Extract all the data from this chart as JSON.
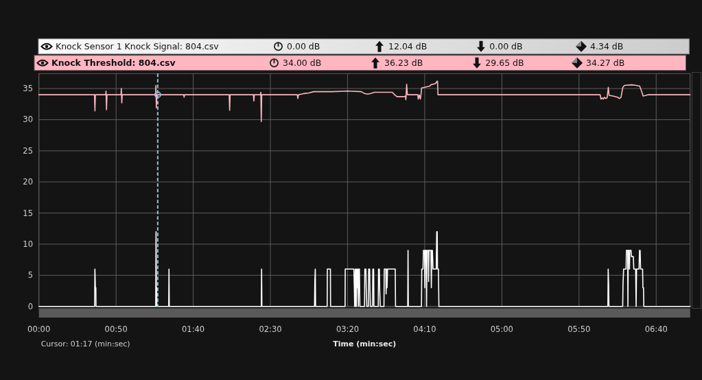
{
  "chart_data": {
    "type": "line",
    "xlabel": "Time (min:sec)",
    "xlim": [
      0,
      422
    ],
    "xticks": [
      {
        "value": 0,
        "label": "00:00"
      },
      {
        "value": 50,
        "label": "00:50"
      },
      {
        "value": 100,
        "label": "01:40"
      },
      {
        "value": 150,
        "label": "02:30"
      },
      {
        "value": 200,
        "label": "03:20"
      },
      {
        "value": 250,
        "label": "04:10"
      },
      {
        "value": 300,
        "label": "05:00"
      },
      {
        "value": 350,
        "label": "05:50"
      },
      {
        "value": 400,
        "label": "06:40"
      }
    ],
    "ylim": [
      0,
      37.4
    ],
    "yticks": [
      0,
      5,
      10,
      15,
      20,
      25,
      30,
      35
    ],
    "grid": true,
    "legend": "top",
    "series": [
      {
        "name": "Knock Sensor 1 Knock Signal: 804.csv",
        "color": "#ffffff",
        "x": [
          0,
          36.1,
          36.3,
          36.6,
          36.9,
          37.0,
          75.7,
          75.9,
          76.1,
          76.3,
          76.4,
          84.1,
          84.3,
          84.5,
          144.1,
          144.3,
          144.5,
          178.6,
          178.8,
          179.1,
          179.3,
          186.8,
          186.9,
          188.9,
          189.0,
          198.4,
          198.5,
          204.1,
          204.4,
          204.6,
          205.0,
          205.2,
          205.5,
          205.7,
          206.1,
          206.4,
          206.7,
          207.0,
          207.3,
          207.7,
          208.0,
          211.0,
          211.2,
          211.9,
          212.1,
          212.5,
          213.5,
          213.7,
          214.3,
          214.5,
          214.8,
          216.2,
          216.4,
          216.9,
          217.1,
          219.9,
          220.1,
          220.6,
          220.8,
          221.2,
          223.6,
          223.8,
          224.8,
          225.0,
          225.3,
          225.6,
          225.9,
          230.9,
          231.1,
          239.0,
          239.2,
          239.4,
          247.9,
          248.1,
          248.9,
          249.2,
          249.9,
          250.1,
          250.4,
          251.0,
          251.2,
          251.5,
          252.3,
          252.5,
          252.8,
          254.0,
          254.3,
          254.6,
          255.0,
          255.4,
          257.5,
          257.8,
          258.1,
          258.3,
          258.9,
          259.2,
          368.7,
          368.9,
          369.2,
          369.4,
          378.3,
          378.5,
          378.9,
          380.5,
          380.7,
          381.5,
          381.7,
          381.9,
          382.5,
          382.7,
          382.9,
          383.7,
          384.0,
          385.2,
          385.5,
          386.7,
          387.0,
          387.3,
          388.9,
          389.2,
          389.6,
          389.9,
          391.2,
          391.4,
          391.8,
          392.0,
          422
        ],
        "values": [
          0,
          0,
          6,
          3,
          3,
          0,
          0,
          12,
          3,
          3,
          0,
          0,
          6,
          0,
          0,
          6,
          0,
          0,
          4,
          6,
          0,
          0,
          6,
          6,
          0,
          0,
          6,
          6,
          3,
          0,
          6,
          0,
          6,
          0,
          6,
          3,
          6,
          0,
          6,
          6,
          0,
          0,
          6,
          6,
          3,
          0,
          0,
          6,
          6,
          3,
          0,
          0,
          6,
          6,
          0,
          0,
          6,
          6,
          3,
          0,
          0,
          6,
          6,
          2,
          6,
          3,
          6,
          6,
          0,
          0,
          9,
          0,
          0,
          6,
          6,
          9,
          9,
          3,
          9,
          9,
          0,
          9,
          9,
          4,
          9,
          9,
          3,
          9,
          9,
          6,
          6,
          12,
          12,
          6,
          6,
          0,
          0,
          6,
          3.5,
          0,
          0,
          3.5,
          6,
          6,
          9,
          9,
          0,
          9,
          9,
          6,
          9,
          9,
          8,
          8,
          6,
          6,
          0,
          6,
          6,
          9,
          9,
          6,
          6,
          3,
          3,
          0,
          0
        ]
      },
      {
        "name": "Knock Threshold: 804.csv",
        "color": "#ffb6c1",
        "x": [
          0,
          36.0,
          36.3,
          36.6,
          43.3,
          43.5,
          43.8,
          44.1,
          53.2,
          53.4,
          53.7,
          54.0,
          75.6,
          75.8,
          76.1,
          76.4,
          93.8,
          94.1,
          94.4,
          123.3,
          123.6,
          123.9,
          139.0,
          139.3,
          139.6,
          143.6,
          143.8,
          144.1,
          144.4,
          167.4,
          167.8,
          168.2,
          170,
          172,
          175,
          178,
          190,
          200,
          208.9,
          211,
          213,
          215,
          217.5,
          229,
          230.5,
          232,
          236.6,
          237.5,
          237.8,
          238.3,
          238.8,
          245.5,
          245.8,
          246.5,
          247.2,
          247.6,
          248,
          250,
          253.3,
          254,
          257,
          258.1,
          258.3,
          258.6,
          363.7,
          364.2,
          365,
          365.7,
          366.4,
          367.2,
          368.2,
          369,
          369.5,
          372,
          375,
          376.2,
          377.2,
          378.4,
          379.5,
          384,
          387,
          389.3,
          390.5,
          391.5,
          393.5,
          394.5,
          422
        ],
        "values": [
          34,
          34,
          31.4,
          34,
          34,
          34.6,
          31.6,
          34,
          34,
          35.0,
          32.7,
          34,
          34,
          35.5,
          31.9,
          34,
          34,
          33.6,
          34,
          34,
          31.5,
          34,
          34,
          33.0,
          34,
          34,
          34.4,
          29.7,
          34,
          34,
          33.4,
          34,
          34.1,
          34.2,
          34.3,
          34.5,
          34.5,
          34.6,
          34.5,
          34.2,
          34.1,
          34.2,
          34.4,
          34.4,
          34.0,
          33.7,
          33.7,
          33.8,
          33.2,
          35.7,
          34,
          34,
          33.3,
          34,
          33.3,
          34,
          35.1,
          35.2,
          35.4,
          35.6,
          35.8,
          36.2,
          36.2,
          34,
          34,
          33.3,
          33.5,
          33.3,
          33.6,
          33.4,
          33.5,
          35.2,
          33.9,
          33.8,
          33.6,
          33.4,
          33.6,
          35.2,
          35.5,
          35.6,
          35.5,
          35.4,
          34.6,
          33.8,
          33.9,
          34,
          34
        ]
      }
    ],
    "ref_lines": [
      {
        "axis": "x",
        "value": 77,
        "color": "#8cc6da",
        "line_style": "dashed"
      }
    ],
    "annotations": [
      "0.00 dB",
      "12.04 dB",
      "0.00 dB",
      "4.34 dB",
      "34.00 dB",
      "36.23 dB",
      "29.65 dB",
      "34.27 dB",
      "Cursor: 01:17 (min:sec)"
    ]
  }
}
